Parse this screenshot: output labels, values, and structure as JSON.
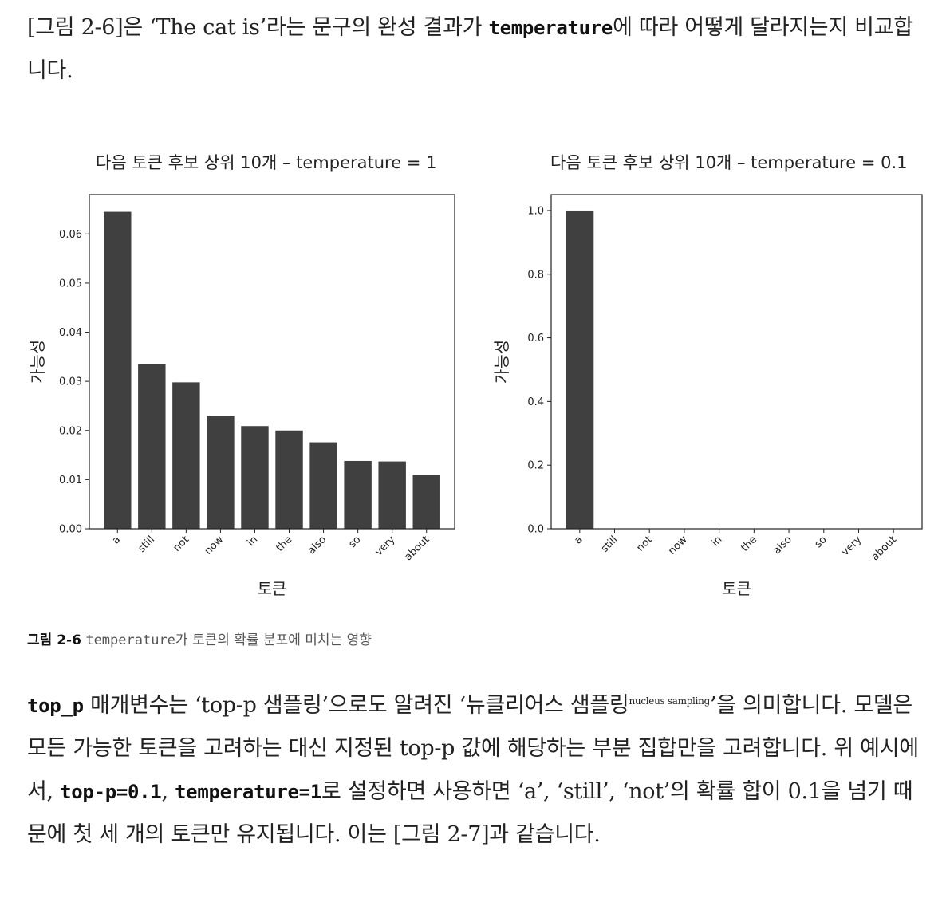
{
  "paragraph1": {
    "t1": "[그림 2-6]은 ‘The cat is’라는 문구의 완성 결과가 ",
    "code": "temperature",
    "t2": "에 따라 어떻게 달라지는지 비교합니다."
  },
  "chart_data": [
    {
      "type": "bar",
      "title": "다음 토큰 후보 상위 10개 – temperature = 1",
      "xlabel": "토큰",
      "ylabel": "가능성",
      "categories": [
        "a",
        "still",
        "not",
        "now",
        "in",
        "the",
        "also",
        "so",
        "very",
        "about"
      ],
      "values": [
        0.0645,
        0.0335,
        0.0298,
        0.023,
        0.0209,
        0.02,
        0.0176,
        0.0138,
        0.0137,
        0.011
      ],
      "ylim": [
        0,
        0.068
      ],
      "yticks": [
        0.0,
        0.01,
        0.02,
        0.03,
        0.04,
        0.05,
        0.06
      ],
      "ytick_labels": [
        "0.00",
        "0.01",
        "0.02",
        "0.03",
        "0.04",
        "0.05",
        "0.06"
      ],
      "bar_color": "#404040"
    },
    {
      "type": "bar",
      "title": "다음 토큰 후보 상위 10개 – temperature = 0.1",
      "xlabel": "토큰",
      "ylabel": "가능성",
      "categories": [
        "a",
        "still",
        "not",
        "now",
        "in",
        "the",
        "also",
        "so",
        "very",
        "about"
      ],
      "values": [
        1.0,
        0,
        0,
        0,
        0,
        0,
        0,
        0,
        0,
        0
      ],
      "ylim": [
        0,
        1.05
      ],
      "yticks": [
        0.0,
        0.2,
        0.4,
        0.6,
        0.8,
        1.0
      ],
      "ytick_labels": [
        "0.0",
        "0.2",
        "0.4",
        "0.6",
        "0.8",
        "1.0"
      ],
      "bar_color": "#404040"
    }
  ],
  "caption": {
    "label": "그림 2-6",
    "code": "temperature",
    "text": "가 토큰의 확률 분포에 미치는 영향"
  },
  "paragraph2": {
    "c1": "top_p",
    "t1": " 매개변수는 ‘top-p 샘플링’으로도 알려진 ‘뉴클리어스 샘플링",
    "sup": "nucleus sampling",
    "t2": "’을 의미합니다. 모델은 모든 가능한 토큰을 고려하는 대신 지정된 top-p 값에 해당하는 부분 집합만을 고려합니다. 위 예시에서, ",
    "c2": "top-p=0.1",
    "t3": ", ",
    "c3": "temperature=1",
    "t4": "로 설정하면 사용하면 ‘a’, ‘still’, ‘not’의 확률 합이 0.1을 넘기 때문에 첫 세 개의 토큰만 유지됩니다. 이는 [그림 2-7]과 같습니다."
  }
}
